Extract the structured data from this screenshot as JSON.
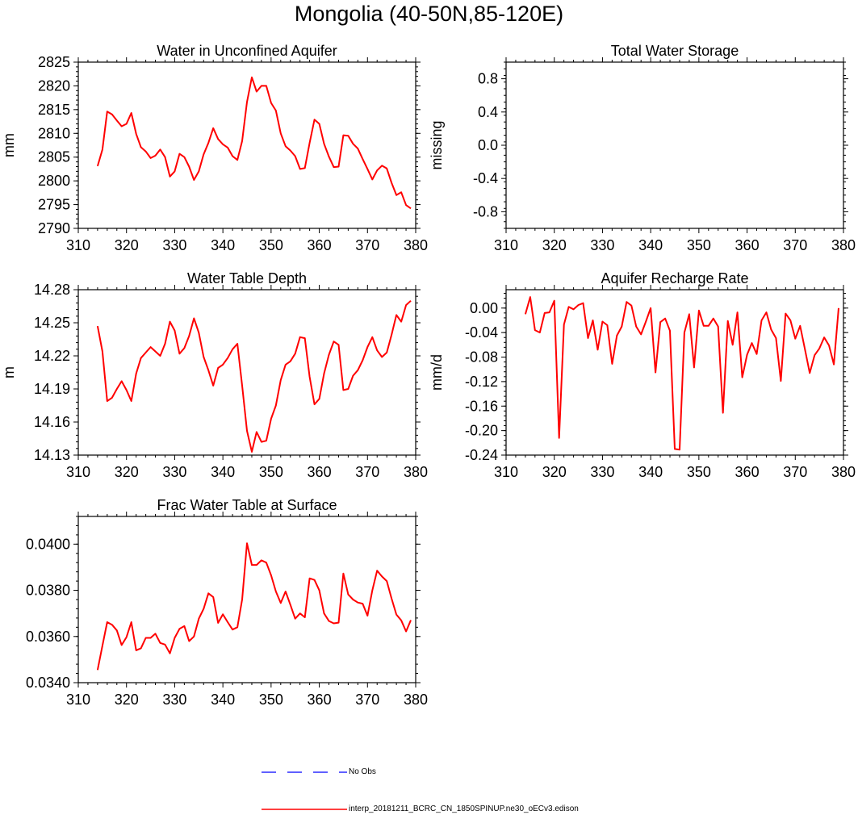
{
  "title": "Mongolia (40-50N,85-120E)",
  "legend": [
    {
      "label": "No Obs",
      "color": "#0000ff",
      "dash": true
    },
    {
      "label": "interp_20181211_BCRC_CN_1850SPINUP.ne30_oECv3.edison",
      "color": "#ff0000",
      "dash": false
    }
  ],
  "chart_data": [
    {
      "type": "line",
      "title": "Water in Unconfined Aquifer",
      "ylabel": "mm",
      "xlim": [
        310,
        380
      ],
      "ylim": [
        2790,
        2825
      ],
      "xticks": [
        310,
        320,
        330,
        340,
        350,
        360,
        370,
        380
      ],
      "yticks": [
        2790,
        2795,
        2800,
        2805,
        2810,
        2815,
        2820,
        2825
      ],
      "ytick_labels": [
        "2790",
        "2795",
        "2800",
        "2805",
        "2810",
        "2815",
        "2820",
        "2825"
      ],
      "series": [
        {
          "color": "#ff0000",
          "x": [
            314,
            315,
            316,
            317,
            318,
            319,
            320,
            321,
            322,
            323,
            324,
            325,
            326,
            327,
            328,
            329,
            330,
            331,
            332,
            333,
            334,
            335,
            336,
            337,
            338,
            339,
            340,
            341,
            342,
            343,
            344,
            345,
            346,
            347,
            348,
            349,
            350,
            351,
            352,
            353,
            354,
            355,
            356,
            357,
            358,
            359,
            360,
            361,
            362,
            363,
            364,
            365,
            366,
            367,
            368,
            369,
            370,
            371,
            372,
            373,
            374,
            375,
            376,
            377,
            378,
            379
          ],
          "y": [
            2803.1,
            2806.6,
            2814.6,
            2814.0,
            2812.7,
            2811.5,
            2812.0,
            2814.3,
            2809.9,
            2807.1,
            2806.2,
            2804.8,
            2805.3,
            2806.6,
            2805.0,
            2800.9,
            2802.0,
            2805.7,
            2805.0,
            2803.0,
            2800.2,
            2802.0,
            2805.6,
            2808.0,
            2811.1,
            2808.8,
            2807.7,
            2807.0,
            2805.2,
            2804.4,
            2808.4,
            2816.6,
            2821.8,
            2818.8,
            2820.0,
            2820.0,
            2816.4,
            2814.8,
            2810.0,
            2807.3,
            2806.4,
            2805.2,
            2802.5,
            2802.7,
            2808.0,
            2812.9,
            2812.0,
            2807.8,
            2805.1,
            2802.9,
            2803.0,
            2809.6,
            2809.5,
            2807.8,
            2806.8,
            2804.6,
            2802.5,
            2800.3,
            2802.2,
            2803.2,
            2802.6,
            2799.6,
            2797.0,
            2797.6,
            2794.9,
            2794.2
          ]
        }
      ]
    },
    {
      "type": "line",
      "title": "Total Water Storage",
      "ylabel": "missing",
      "xlim": [
        310,
        380
      ],
      "ylim": [
        -1.0,
        1.0
      ],
      "xticks": [
        310,
        320,
        330,
        340,
        350,
        360,
        370,
        380
      ],
      "yticks": [
        -0.8,
        -0.4,
        0.0,
        0.4,
        0.8
      ],
      "ytick_labels": [
        "-0.8",
        "-0.4",
        "0.0",
        "0.4",
        "0.8"
      ],
      "series": []
    },
    {
      "type": "line",
      "title": "Water Table Depth",
      "ylabel": "m",
      "xlim": [
        310,
        380
      ],
      "ylim": [
        14.13,
        14.28
      ],
      "xticks": [
        310,
        320,
        330,
        340,
        350,
        360,
        370,
        380
      ],
      "yticks": [
        14.13,
        14.16,
        14.19,
        14.22,
        14.25,
        14.28
      ],
      "ytick_labels": [
        "14.13",
        "14.16",
        "14.19",
        "14.22",
        "14.25",
        "14.28"
      ],
      "series": [
        {
          "color": "#ff0000",
          "x": [
            314,
            315,
            316,
            317,
            318,
            319,
            320,
            321,
            322,
            323,
            324,
            325,
            326,
            327,
            328,
            329,
            330,
            331,
            332,
            333,
            334,
            335,
            336,
            337,
            338,
            339,
            340,
            341,
            342,
            343,
            344,
            345,
            346,
            347,
            348,
            349,
            350,
            351,
            352,
            353,
            354,
            355,
            356,
            357,
            358,
            359,
            360,
            361,
            362,
            363,
            364,
            365,
            366,
            367,
            368,
            369,
            370,
            371,
            372,
            373,
            374,
            375,
            376,
            377,
            378,
            379
          ],
          "y": [
            14.247,
            14.224,
            14.179,
            14.182,
            14.19,
            14.197,
            14.189,
            14.179,
            14.204,
            14.218,
            14.223,
            14.228,
            14.224,
            14.22,
            14.231,
            14.251,
            14.243,
            14.222,
            14.227,
            14.238,
            14.254,
            14.241,
            14.219,
            14.207,
            14.193,
            14.209,
            14.212,
            14.218,
            14.226,
            14.231,
            14.193,
            14.152,
            14.133,
            14.151,
            14.142,
            14.143,
            14.163,
            14.175,
            14.198,
            14.212,
            14.215,
            14.222,
            14.237,
            14.236,
            14.201,
            14.176,
            14.181,
            14.204,
            14.221,
            14.233,
            14.23,
            14.189,
            14.19,
            14.202,
            14.207,
            14.216,
            14.228,
            14.237,
            14.225,
            14.219,
            14.223,
            14.239,
            14.257,
            14.251,
            14.266,
            14.27
          ]
        }
      ]
    },
    {
      "type": "line",
      "title": "Aquifer Recharge Rate",
      "ylabel": "mm/d",
      "xlim": [
        310,
        380
      ],
      "ylim": [
        -0.24,
        0.03
      ],
      "xticks": [
        310,
        320,
        330,
        340,
        350,
        360,
        370,
        380
      ],
      "yticks": [
        -0.24,
        -0.2,
        -0.16,
        -0.12,
        -0.08,
        -0.04,
        0.0
      ],
      "ytick_labels": [
        "-0.24",
        "-0.20",
        "-0.16",
        "-0.12",
        "-0.08",
        "-0.04",
        "0.00"
      ],
      "series": [
        {
          "color": "#ff0000",
          "x": [
            314,
            315,
            316,
            317,
            318,
            319,
            320,
            321,
            322,
            323,
            324,
            325,
            326,
            327,
            328,
            329,
            330,
            331,
            332,
            333,
            334,
            335,
            336,
            337,
            338,
            339,
            340,
            341,
            342,
            343,
            344,
            345,
            346,
            347,
            348,
            349,
            350,
            351,
            352,
            353,
            354,
            355,
            356,
            357,
            358,
            359,
            360,
            361,
            362,
            363,
            364,
            365,
            366,
            367,
            368,
            369,
            370,
            371,
            372,
            373,
            374,
            375,
            376,
            377,
            378,
            379
          ],
          "y": [
            -0.01,
            0.018,
            -0.036,
            -0.04,
            -0.008,
            -0.007,
            0.012,
            -0.212,
            -0.027,
            0.002,
            -0.002,
            0.005,
            0.008,
            -0.049,
            -0.02,
            -0.068,
            -0.022,
            -0.028,
            -0.091,
            -0.045,
            -0.03,
            0.01,
            0.004,
            -0.03,
            -0.043,
            -0.022,
            0.0,
            -0.105,
            -0.023,
            -0.017,
            -0.037,
            -0.23,
            -0.231,
            -0.04,
            -0.01,
            -0.097,
            -0.004,
            -0.029,
            -0.029,
            -0.017,
            -0.03,
            -0.171,
            -0.021,
            -0.06,
            -0.007,
            -0.113,
            -0.076,
            -0.057,
            -0.075,
            -0.02,
            -0.007,
            -0.035,
            -0.049,
            -0.119,
            -0.009,
            -0.02,
            -0.05,
            -0.029,
            -0.067,
            -0.106,
            -0.077,
            -0.066,
            -0.048,
            -0.061,
            -0.092,
            0.0
          ]
        }
      ]
    },
    {
      "type": "line",
      "title": "Frac Water Table at Surface",
      "ylabel": "",
      "xlim": [
        310,
        380
      ],
      "ylim": [
        0.034,
        0.0412
      ],
      "xticks": [
        310,
        320,
        330,
        340,
        350,
        360,
        370,
        380
      ],
      "yticks": [
        0.034,
        0.036,
        0.038,
        0.04
      ],
      "ytick_labels": [
        "0.0340",
        "0.0360",
        "0.0380",
        "0.0400"
      ],
      "series": [
        {
          "color": "#ff0000",
          "x": [
            314,
            315,
            316,
            317,
            318,
            319,
            320,
            321,
            322,
            323,
            324,
            325,
            326,
            327,
            328,
            329,
            330,
            331,
            332,
            333,
            334,
            335,
            336,
            337,
            338,
            339,
            340,
            341,
            342,
            343,
            344,
            345,
            346,
            347,
            348,
            349,
            350,
            351,
            352,
            353,
            354,
            355,
            356,
            357,
            358,
            359,
            360,
            361,
            362,
            363,
            364,
            365,
            366,
            367,
            368,
            369,
            370,
            371,
            372,
            373,
            374,
            375,
            376,
            377,
            378,
            379
          ],
          "y": [
            0.03455,
            0.0356,
            0.03662,
            0.03651,
            0.03626,
            0.03563,
            0.03597,
            0.03662,
            0.0354,
            0.03549,
            0.03594,
            0.03594,
            0.03612,
            0.03572,
            0.03565,
            0.03527,
            0.03594,
            0.03633,
            0.03645,
            0.0358,
            0.036,
            0.03677,
            0.0372,
            0.03787,
            0.03771,
            0.03659,
            0.03696,
            0.03662,
            0.0363,
            0.0364,
            0.0376,
            0.04004,
            0.0391,
            0.0391,
            0.0393,
            0.0392,
            0.03865,
            0.03795,
            0.03745,
            0.03795,
            0.03738,
            0.03677,
            0.037,
            0.03683,
            0.03852,
            0.03845,
            0.038,
            0.037,
            0.03667,
            0.03657,
            0.0366,
            0.03873,
            0.03782,
            0.0376,
            0.03747,
            0.03742,
            0.0369,
            0.038,
            0.03885,
            0.0386,
            0.0384,
            0.03765,
            0.03695,
            0.0367,
            0.03622,
            0.03671
          ]
        }
      ]
    }
  ]
}
